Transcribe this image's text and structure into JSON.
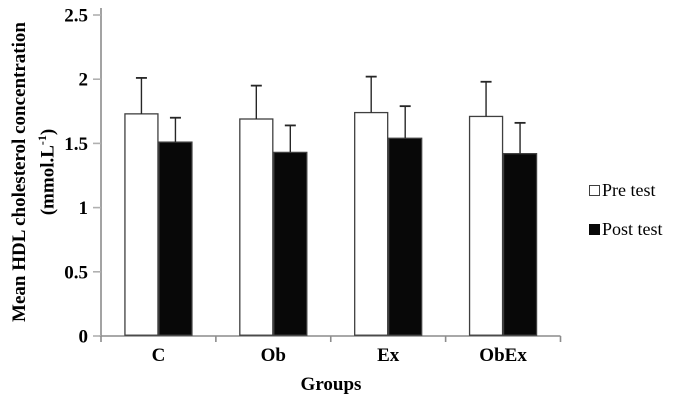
{
  "figure": {
    "background": "#ffffff"
  },
  "chart_data": {
    "type": "bar",
    "title": "",
    "xlabel": "Groups",
    "ylabel_line1": "Mean HDL cholesterol concentration",
    "ylabel_unit_prefix": "(mmol.L",
    "ylabel_unit_sup": "-1",
    "ylabel_unit_suffix": ")",
    "categories": [
      "C",
      "Ob",
      "Ex",
      "ObEx"
    ],
    "series": [
      {
        "name": "Pre test",
        "fill": "#ffffff",
        "values": [
          1.73,
          1.69,
          1.74,
          1.71
        ],
        "errors_plus": [
          0.28,
          0.26,
          0.28,
          0.27
        ]
      },
      {
        "name": "Post test",
        "fill": "#080808",
        "values": [
          1.51,
          1.43,
          1.54,
          1.42
        ],
        "errors_plus": [
          0.19,
          0.21,
          0.25,
          0.24
        ]
      }
    ],
    "ylim": [
      0,
      2.5
    ],
    "yticks": [
      "0",
      "0.5",
      "1",
      "1.5",
      "2",
      "2.5"
    ],
    "grid": false,
    "error_bars": "upper-only",
    "legend_position": "right-middle",
    "colors": {
      "axis": "#8c8c8c",
      "y_tick": "#b0b0b0",
      "bar_outline": "#3f3f3f",
      "error_bar": "#262626",
      "text": "#000000"
    }
  }
}
